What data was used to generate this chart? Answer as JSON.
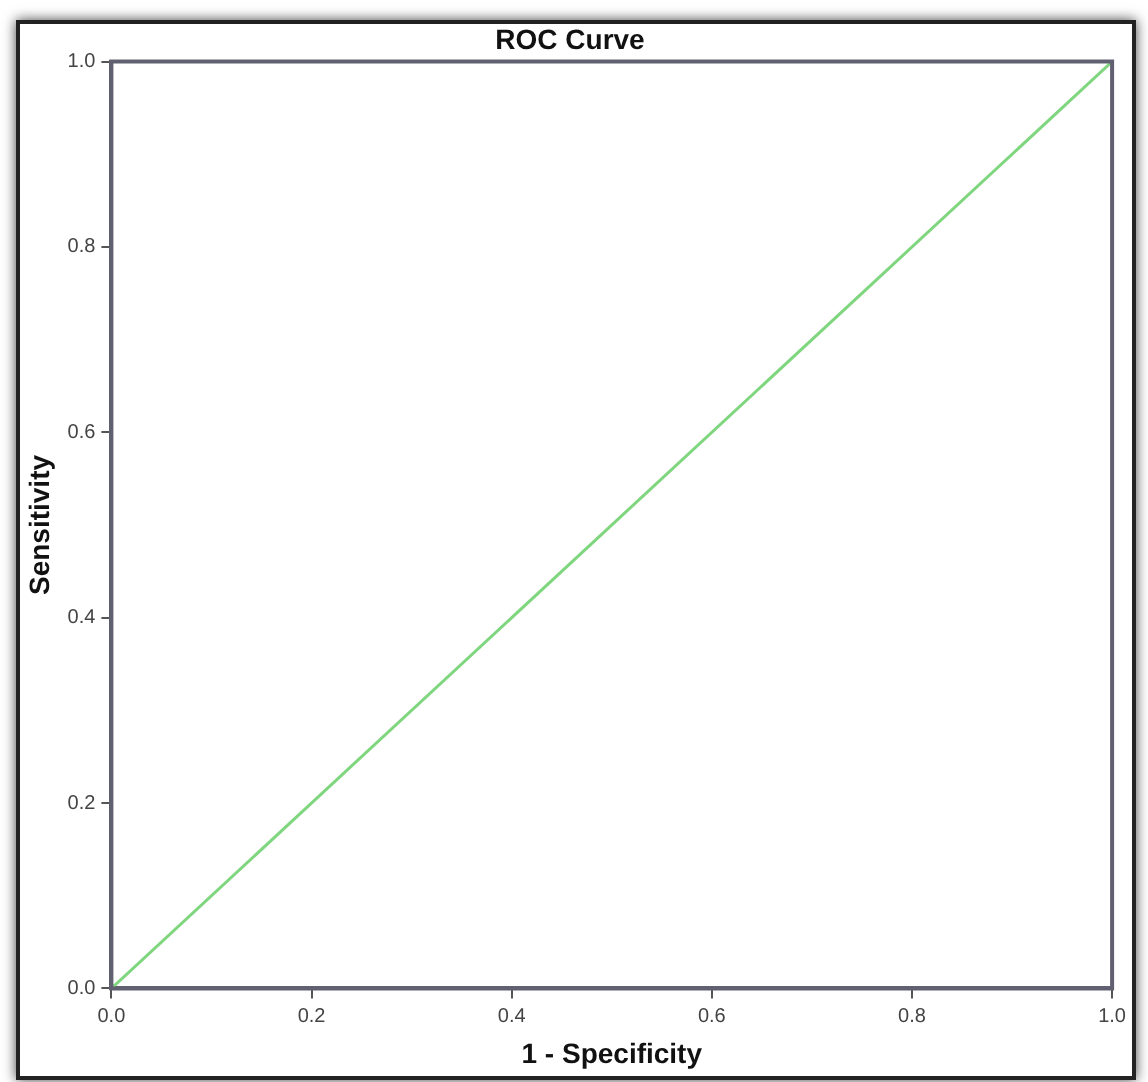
{
  "chart_data": {
    "type": "line",
    "title": "ROC Curve",
    "xlabel": "1 - Specificity",
    "ylabel": "Sensitivity",
    "x": [
      0,
      1
    ],
    "series": [
      {
        "color": "#7fd67f",
        "values": [
          0,
          1
        ]
      }
    ],
    "xlim": [
      0,
      1
    ],
    "ylim": [
      0,
      1
    ],
    "xticks": [
      {
        "value": 0,
        "label": "0.0"
      },
      {
        "value": 0.2,
        "label": "0.2"
      },
      {
        "value": 0.4,
        "label": "0.4"
      },
      {
        "value": 0.6,
        "label": "0.6"
      },
      {
        "value": 0.8,
        "label": "0.8"
      },
      {
        "value": 1,
        "label": "1.0"
      }
    ],
    "yticks": [
      {
        "value": 0,
        "label": "0.0"
      },
      {
        "value": 0.2,
        "label": "0.2"
      },
      {
        "value": 0.4,
        "label": "0.4"
      },
      {
        "value": 0.6,
        "label": "0.6"
      },
      {
        "value": 0.8,
        "label": "0.8"
      },
      {
        "value": 1,
        "label": "1.0"
      }
    ],
    "grid": false,
    "legend": false,
    "marker": "none",
    "line_style": "solid"
  }
}
